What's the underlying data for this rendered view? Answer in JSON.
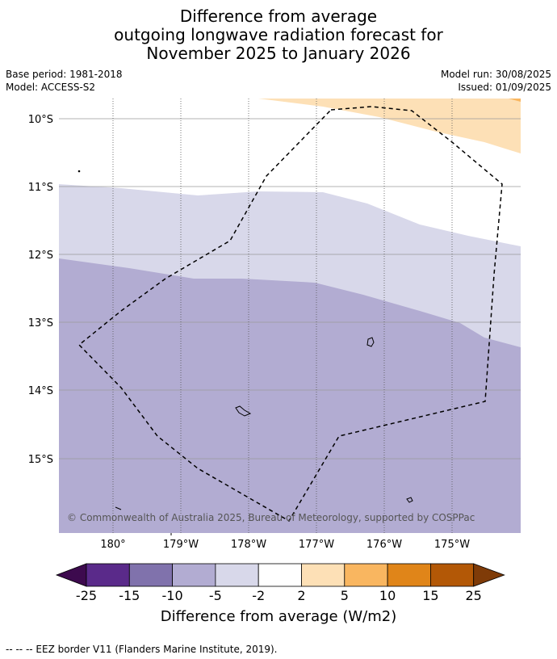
{
  "title": {
    "line1": "Difference from average",
    "line2": "outgoing longwave radiation forecast for",
    "line3": "November 2025 to January 2026"
  },
  "meta": {
    "base_period": "Base period: 1981-2018",
    "model": "Model: ACCESS-S2",
    "model_run": "Model run: 30/08/2025",
    "issued": "Issued: 01/09/2025"
  },
  "map": {
    "lat_labels": [
      "10°S",
      "11°S",
      "12°S",
      "13°S",
      "14°S",
      "15°S"
    ],
    "lon_labels": [
      "180°",
      "179°W",
      "178°W",
      "177°W",
      "176°W",
      "175°W"
    ],
    "copyright": "© Commonwealth of Australia 2025, Bureau of Meteorology, supported by COSPPac",
    "fill_colors": {
      "minus10_minus5": "#b2acd2",
      "minus5_minus2": "#d8d8ea",
      "minus2_2": "#ffffff",
      "2_5": "#fde0b6"
    }
  },
  "colorbar": {
    "ticks": [
      "-25",
      "-15",
      "-10",
      "-5",
      "-2",
      "2",
      "5",
      "10",
      "15",
      "25"
    ],
    "colors": [
      "#3d0a4e",
      "#5a2a8a",
      "#8072ac",
      "#b2acd2",
      "#d8d8ea",
      "#ffffff",
      "#fde0b6",
      "#f9b660",
      "#e08519",
      "#b35806",
      "#7f3b08"
    ],
    "title": "Difference from average (W/m2)"
  },
  "footnote": "--  --  -- EEZ border V11 (Flanders Marine Institute, 2019)."
}
